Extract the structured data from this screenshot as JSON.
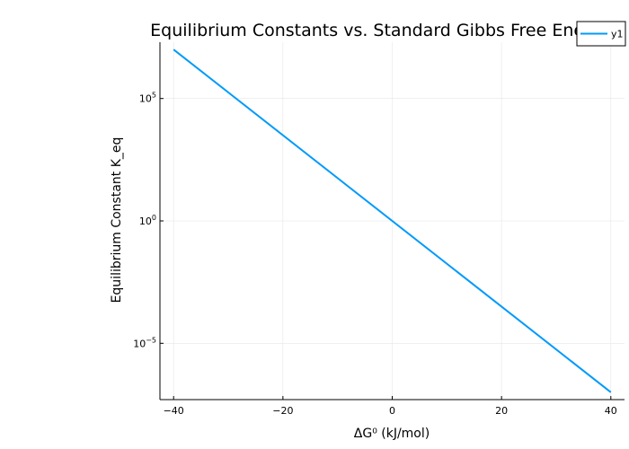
{
  "chart_data": {
    "type": "line",
    "title": "Equilibrium Constants vs. Standard Gibbs Free Energy",
    "xlabel": "ΔG⁰ (kJ/mol)",
    "ylabel": "Equilibrium Constant K_eq",
    "xlim": [
      -42.5,
      42.5
    ],
    "ylim_log10": [
      -7.3,
      7.3
    ],
    "y_scale": "log",
    "grid": true,
    "legend_position": "top-right",
    "x_ticks": [
      {
        "value": -40,
        "label": "−40"
      },
      {
        "value": -20,
        "label": "−20"
      },
      {
        "value": 0,
        "label": "0"
      },
      {
        "value": 20,
        "label": "20"
      },
      {
        "value": 40,
        "label": "40"
      }
    ],
    "y_ticks": [
      {
        "log10": -5,
        "base": "10",
        "exp": "−5"
      },
      {
        "log10": 0,
        "base": "10",
        "exp": "0"
      },
      {
        "log10": 5,
        "base": "10",
        "exp": "5"
      }
    ],
    "series": [
      {
        "name": "y1",
        "color": "#009AFA",
        "x": [
          -40,
          40
        ],
        "y": [
          10000000.0,
          1e-07
        ]
      }
    ]
  }
}
